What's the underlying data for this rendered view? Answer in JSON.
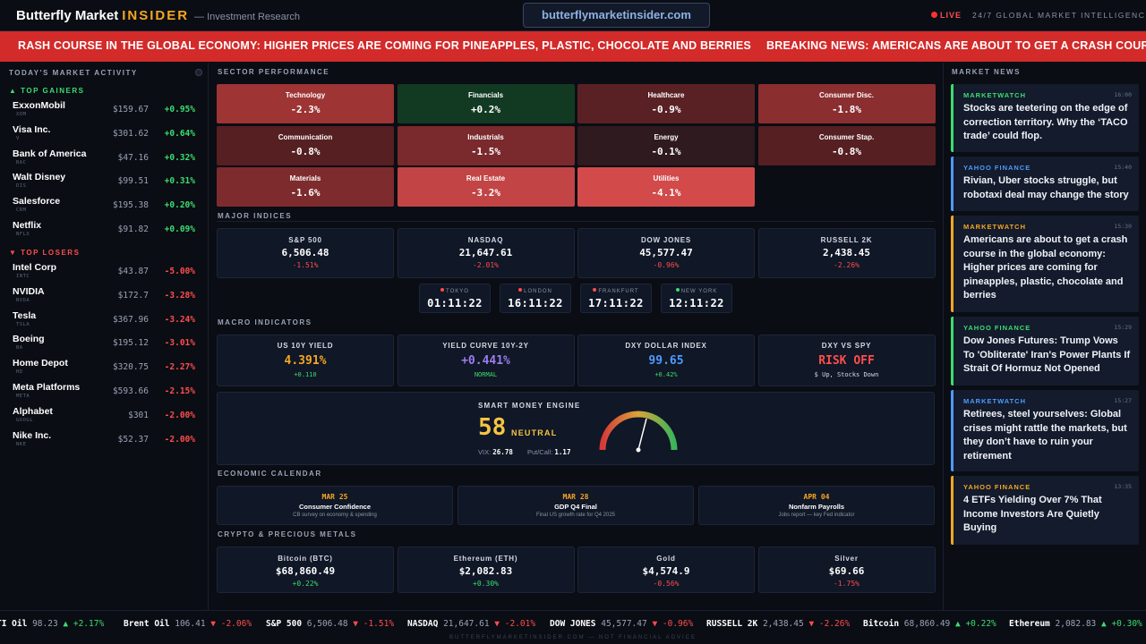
{
  "header": {
    "brand": "Butterfly Market",
    "brand_accent": "INSIDER",
    "brand_sub": "— Investment Research",
    "url": "butterflymarketinsider.com",
    "live": "LIVE",
    "tagline": "24/7 GLOBAL MARKET INTELLIGENCE"
  },
  "banner": {
    "items": [
      "RASH COURSE IN THE GLOBAL ECONOMY: HIGHER PRICES ARE COMING FOR PINEAPPLES, PLASTIC, CHOCOLATE AND BERRIES",
      "BREAKING NEWS: AMERICANS ARE ABOUT TO GET A CRASH COURSE"
    ]
  },
  "market_activity": {
    "title": "TODAY'S MARKET ACTIVITY",
    "gainers_label": "▲ TOP GAINERS",
    "losers_label": "▼ TOP LOSERS",
    "gainers": [
      {
        "name": "ExxonMobil",
        "ticker": "XOM",
        "price": "$159.67",
        "change": "+0.95%"
      },
      {
        "name": "Visa Inc.",
        "ticker": "V",
        "price": "$301.62",
        "change": "+0.64%"
      },
      {
        "name": "Bank of America",
        "ticker": "BAC",
        "price": "$47.16",
        "change": "+0.32%"
      },
      {
        "name": "Walt Disney",
        "ticker": "DIS",
        "price": "$99.51",
        "change": "+0.31%"
      },
      {
        "name": "Salesforce",
        "ticker": "CRM",
        "price": "$195.38",
        "change": "+0.20%"
      },
      {
        "name": "Netflix",
        "ticker": "NFLX",
        "price": "$91.82",
        "change": "+0.09%"
      }
    ],
    "losers": [
      {
        "name": "Intel Corp",
        "ticker": "INTC",
        "price": "$43.87",
        "change": "-5.00%"
      },
      {
        "name": "NVIDIA",
        "ticker": "NVDA",
        "price": "$172.7",
        "change": "-3.28%"
      },
      {
        "name": "Tesla",
        "ticker": "TSLA",
        "price": "$367.96",
        "change": "-3.24%"
      },
      {
        "name": "Boeing",
        "ticker": "BA",
        "price": "$195.12",
        "change": "-3.01%"
      },
      {
        "name": "Home Depot",
        "ticker": "HD",
        "price": "$320.75",
        "change": "-2.27%"
      },
      {
        "name": "Meta Platforms",
        "ticker": "META",
        "price": "$593.66",
        "change": "-2.15%"
      },
      {
        "name": "Alphabet",
        "ticker": "GOOGL",
        "price": "$301",
        "change": "-2.00%"
      },
      {
        "name": "Nike Inc.",
        "ticker": "NKE",
        "price": "$52.37",
        "change": "-2.00%"
      }
    ]
  },
  "sectors": {
    "title": "SECTOR PERFORMANCE",
    "items": [
      {
        "name": "Technology",
        "value": "-2.3%",
        "color": "#9e3434"
      },
      {
        "name": "Financials",
        "value": "+0.2%",
        "color": "#123a23"
      },
      {
        "name": "Healthcare",
        "value": "-0.9%",
        "color": "#5a2124"
      },
      {
        "name": "Consumer Disc.",
        "value": "-1.8%",
        "color": "#8a2e30"
      },
      {
        "name": "Communication",
        "value": "-0.8%",
        "color": "#561f22"
      },
      {
        "name": "Industrials",
        "value": "-1.5%",
        "color": "#7a2a2c"
      },
      {
        "name": "Energy",
        "value": "-0.1%",
        "color": "#2f1a1f"
      },
      {
        "name": "Consumer Stap.",
        "value": "-0.8%",
        "color": "#561f22"
      },
      {
        "name": "Materials",
        "value": "-1.6%",
        "color": "#7e2b2d"
      },
      {
        "name": "Real Estate",
        "value": "-3.2%",
        "color": "#c24444"
      },
      {
        "name": "Utilities",
        "value": "-4.1%",
        "color": "#d24a4a"
      }
    ]
  },
  "indices": {
    "title": "MAJOR INDICES",
    "items": [
      {
        "name": "S&P 500",
        "value": "6,506.48",
        "change": "-1.51%"
      },
      {
        "name": "NASDAQ",
        "value": "21,647.61",
        "change": "-2.01%"
      },
      {
        "name": "DOW JONES",
        "value": "45,577.47",
        "change": "-0.96%"
      },
      {
        "name": "RUSSELL 2K",
        "value": "2,438.45",
        "change": "-2.26%"
      }
    ]
  },
  "clocks": [
    {
      "city": "TOKYO",
      "time": "01:11:22",
      "dot": "#ff4d4d"
    },
    {
      "city": "LONDON",
      "time": "16:11:22",
      "dot": "#ff4d4d"
    },
    {
      "city": "FRANKFURT",
      "time": "17:11:22",
      "dot": "#ff4d4d"
    },
    {
      "city": "NEW YORK",
      "time": "12:11:22",
      "dot": "#3ddc6e"
    }
  ],
  "macro": {
    "title": "MACRO INDICATORS",
    "items": [
      {
        "name": "US 10Y YIELD",
        "value": "4.391%",
        "sub": "+0.110",
        "color": "#f5a623",
        "sub_color": "#3ddc6e"
      },
      {
        "name": "YIELD CURVE 10Y-2Y",
        "value": "+0.441%",
        "sub": "NORMAL",
        "color": "#9b7cf0",
        "sub_color": "#3ddc6e"
      },
      {
        "name": "DXY DOLLAR INDEX",
        "value": "99.65",
        "sub": "+0.42%",
        "color": "#4d9bff",
        "sub_color": "#3ddc6e"
      },
      {
        "name": "DXY VS SPY",
        "value": "RISK OFF",
        "sub": "$ Up, Stocks Down",
        "color": "#ff4d4d",
        "sub_color": "#d6dae3"
      }
    ]
  },
  "smart_money": {
    "title": "SMART MONEY ENGINE",
    "score": "58",
    "score_value": 58,
    "state": "NEUTRAL",
    "vix_label": "VIX:",
    "vix": "26.78",
    "pc_label": "Put/Call:",
    "pc": "1.17"
  },
  "calendar": {
    "title": "ECONOMIC CALENDAR",
    "items": [
      {
        "date": "MAR 25",
        "event": "Consumer Confidence",
        "desc": "CB survey on economy & spending"
      },
      {
        "date": "MAR 28",
        "event": "GDP Q4 Final",
        "desc": "Final US growth rate for Q4 2025"
      },
      {
        "date": "APR 04",
        "event": "Nonfarm Payrolls",
        "desc": "Jobs report — key Fed indicator"
      }
    ]
  },
  "crypto": {
    "title": "CRYPTO & PRECIOUS METALS",
    "items": [
      {
        "name": "Bitcoin (BTC)",
        "value": "$68,860.49",
        "change": "+0.22%",
        "dir": "up"
      },
      {
        "name": "Ethereum (ETH)",
        "value": "$2,082.83",
        "change": "+0.30%",
        "dir": "up"
      },
      {
        "name": "Gold",
        "value": "$4,574.9",
        "change": "-0.56%",
        "dir": "dn"
      },
      {
        "name": "Silver",
        "value": "$69.66",
        "change": "-1.75%",
        "dir": "dn"
      }
    ]
  },
  "news": {
    "title": "MARKET NEWS",
    "items": [
      {
        "source": "MARKETWATCH",
        "time": "16:00",
        "headline": "Stocks are teetering on the edge of correction territory. Why the ‘TACO trade’ could flop.",
        "color": "#3ddc6e"
      },
      {
        "source": "YAHOO FINANCE",
        "time": "15:40",
        "headline": "Rivian, Uber stocks struggle, but robotaxi deal may change the story",
        "color": "#4d9bff"
      },
      {
        "source": "MARKETWATCH",
        "time": "15:30",
        "headline": "Americans are about to get a crash course in the global economy: Higher prices are coming for pineapples, plastic, chocolate and berries",
        "color": "#f5a623"
      },
      {
        "source": "YAHOO FINANCE",
        "time": "15:29",
        "headline": "Dow Jones Futures: Trump Vows To 'Obliterate' Iran's Power Plants If Strait Of Hormuz Not Opened",
        "color": "#3ddc6e"
      },
      {
        "source": "MARKETWATCH",
        "time": "15:27",
        "headline": "Retirees, steel yourselves: Global crises might rattle the markets, but they don’t have to ruin your retirement",
        "color": "#4d9bff"
      },
      {
        "source": "YAHOO FINANCE",
        "time": "13:35",
        "headline": "4 ETFs Yielding Over 7% That Income Investors Are Quietly Buying",
        "color": "#f5a623"
      }
    ]
  },
  "ticker": [
    {
      "name": "TI Oil",
      "price": "98.23",
      "change": "▲ +2.17%",
      "dir": "up"
    },
    {
      "name": "Brent Oil",
      "price": "106.41",
      "change": "▼ -2.06%",
      "dir": "dn"
    },
    {
      "name": "S&P 500",
      "price": "6,506.48",
      "change": "▼ -1.51%",
      "dir": "dn"
    },
    {
      "name": "NASDAQ",
      "price": "21,647.61",
      "change": "▼ -2.01%",
      "dir": "dn"
    },
    {
      "name": "DOW JONES",
      "price": "45,577.47",
      "change": "▼ -0.96%",
      "dir": "dn"
    },
    {
      "name": "RUSSELL 2K",
      "price": "2,438.45",
      "change": "▼ -2.26%",
      "dir": "dn"
    },
    {
      "name": "Bitcoin",
      "price": "68,860.49",
      "change": "▲ +0.22%",
      "dir": "up"
    },
    {
      "name": "Ethereum",
      "price": "2,082.83",
      "change": "▲ +0.30%",
      "dir": "up"
    }
  ],
  "footer": "BUTTERFLYMARKETINSIDER.COM — NOT FINANCIAL ADVICE",
  "colors": {
    "up": "#3ddc6e",
    "down": "#ff4d4d",
    "accent": "#f5a623",
    "banner": "#d32a2a"
  }
}
